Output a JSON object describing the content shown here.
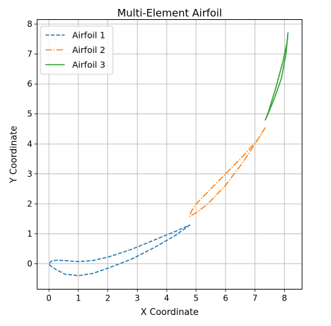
{
  "chart_data": {
    "type": "line",
    "title": "Multi-Element Airfoil",
    "xlabel": "X Coordinate",
    "ylabel": "Y Coordinate",
    "xlim": [
      -0.4,
      8.6
    ],
    "ylim": [
      -0.85,
      8.15
    ],
    "xticks": [
      0,
      1,
      2,
      3,
      4,
      5,
      6,
      7,
      8
    ],
    "yticks": [
      0,
      1,
      2,
      3,
      4,
      5,
      6,
      7,
      8
    ],
    "grid": true,
    "legend_position": "top-left",
    "series": [
      {
        "name": "Airfoil 1",
        "color": "#1f77b4",
        "dash": "dashed",
        "x": [
          4.8,
          4.3,
          3.6,
          2.8,
          2.0,
          1.5,
          1.0,
          0.55,
          0.25,
          0.05,
          0.0,
          0.1,
          0.3,
          0.6,
          1.0,
          1.5,
          2.0,
          2.8,
          3.6,
          4.3,
          4.8
        ],
        "y": [
          1.3,
          0.95,
          0.55,
          0.15,
          -0.15,
          -0.32,
          -0.4,
          -0.35,
          -0.2,
          -0.07,
          0.0,
          0.1,
          0.12,
          0.1,
          0.07,
          0.11,
          0.22,
          0.48,
          0.8,
          1.08,
          1.3
        ]
      },
      {
        "name": "Airfoil 2",
        "color": "#ff7f0e",
        "dash": "dashdot",
        "x": [
          7.35,
          7.1,
          6.6,
          6.0,
          5.4,
          5.0,
          4.78,
          4.82,
          5.0,
          5.4,
          6.0,
          6.6,
          7.1,
          7.35
        ],
        "y": [
          4.55,
          4.15,
          3.4,
          2.62,
          2.0,
          1.7,
          1.58,
          1.72,
          2.0,
          2.4,
          3.0,
          3.6,
          4.15,
          4.55
        ]
      },
      {
        "name": "Airfoil 3",
        "color": "#2ca02c",
        "dash": "solid",
        "x": [
          8.12,
          8.05,
          7.9,
          7.65,
          7.42,
          7.35,
          7.45,
          7.7,
          7.95,
          8.1,
          8.12
        ],
        "y": [
          7.72,
          7.0,
          6.2,
          5.5,
          4.95,
          4.8,
          5.05,
          5.85,
          6.75,
          7.45,
          7.72
        ]
      }
    ]
  }
}
